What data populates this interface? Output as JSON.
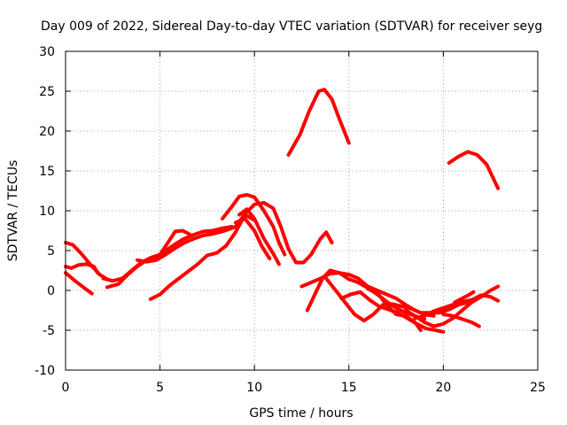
{
  "chart_data": {
    "type": "line",
    "title": "Day 009 of 2022, Sidereal Day-to-day VTEC variation (SDTVAR) for receiver seyg",
    "xlabel": "GPS time / hours",
    "ylabel": "SDTVAR / TECUs",
    "xlim": [
      0,
      25
    ],
    "ylim": [
      -10,
      30
    ],
    "xticks": [
      0,
      5,
      10,
      15,
      20,
      25
    ],
    "yticks": [
      -10,
      -5,
      0,
      5,
      10,
      15,
      20,
      25,
      30
    ],
    "grid": true,
    "color": "#ff0000",
    "series": [
      {
        "name": "arc-1",
        "x": [
          0.0,
          0.4,
          0.8,
          1.3,
          1.8,
          2.2
        ],
        "y": [
          6.0,
          5.7,
          4.7,
          3.3,
          2.0,
          1.4
        ]
      },
      {
        "name": "arc-2",
        "x": [
          0.0,
          0.3,
          0.7,
          1.1,
          1.5,
          1.7
        ],
        "y": [
          3.0,
          2.8,
          3.2,
          3.3,
          3.0,
          2.2
        ]
      },
      {
        "name": "arc-3",
        "x": [
          0.0,
          0.5,
          1.0,
          1.4
        ],
        "y": [
          2.2,
          1.2,
          0.3,
          -0.4
        ]
      },
      {
        "name": "arc-4",
        "x": [
          2.0,
          2.5,
          3.0,
          3.5,
          4.0,
          4.5,
          5.0,
          5.5,
          5.8,
          6.2,
          6.6
        ],
        "y": [
          1.5,
          1.2,
          1.5,
          2.5,
          3.5,
          4.1,
          4.5,
          6.3,
          7.4,
          7.5,
          7.0
        ]
      },
      {
        "name": "arc-5",
        "x": [
          2.2,
          2.8,
          3.3,
          3.8,
          4.3,
          4.8,
          5.3,
          5.8,
          6.2,
          6.8,
          7.3,
          7.8,
          8.3,
          8.8
        ],
        "y": [
          0.4,
          0.8,
          2.0,
          3.0,
          3.8,
          4.2,
          5.0,
          5.8,
          6.4,
          7.0,
          7.4,
          7.5,
          7.8,
          8.0
        ]
      },
      {
        "name": "arc-6",
        "x": [
          3.8,
          4.3,
          4.8,
          5.3,
          5.8,
          6.3,
          6.8,
          7.3,
          7.8,
          8.3,
          8.8,
          9.2
        ],
        "y": [
          3.8,
          3.6,
          3.8,
          4.5,
          5.3,
          6.0,
          6.5,
          6.9,
          7.1,
          7.4,
          7.8,
          8.2
        ]
      },
      {
        "name": "arc-7",
        "x": [
          4.5,
          5.0,
          5.5,
          6.0,
          6.5,
          7.0,
          7.5,
          8.0,
          8.5,
          9.0,
          9.5,
          10.0
        ],
        "y": [
          -1.1,
          -0.5,
          0.6,
          1.5,
          2.4,
          3.3,
          4.4,
          4.7,
          5.6,
          7.3,
          9.5,
          8.8
        ]
      },
      {
        "name": "arc-8",
        "x": [
          8.3,
          8.8,
          9.2,
          9.6,
          10.0,
          10.5,
          11.0,
          11.3,
          11.6
        ],
        "y": [
          9.0,
          10.5,
          11.8,
          12.0,
          11.7,
          10.0,
          8.0,
          6.0,
          4.5
        ]
      },
      {
        "name": "arc-9",
        "x": [
          9.0,
          9.5,
          10.0,
          10.5,
          11.0,
          11.4,
          11.8,
          12.2,
          12.6,
          13.0,
          13.5,
          13.8,
          14.1
        ],
        "y": [
          8.0,
          9.6,
          10.8,
          11.0,
          10.3,
          8.0,
          5.2,
          3.5,
          3.5,
          4.5,
          6.5,
          7.3,
          6.0
        ]
      },
      {
        "name": "arc-10",
        "x": [
          9.2,
          9.6,
          10.0,
          10.5,
          11.0,
          11.3
        ],
        "y": [
          9.5,
          10.2,
          9.0,
          6.5,
          4.6,
          3.3
        ]
      },
      {
        "name": "arc-11",
        "x": [
          9.0,
          9.5,
          10.0,
          10.4,
          10.8
        ],
        "y": [
          8.5,
          9.0,
          7.5,
          5.5,
          4.0
        ]
      },
      {
        "name": "arc-12",
        "x": [
          11.8,
          12.4,
          12.9,
          13.4,
          13.7,
          14.1,
          14.5,
          15.0
        ],
        "y": [
          17.0,
          19.5,
          22.5,
          25.0,
          25.2,
          24.0,
          21.5,
          18.5
        ]
      },
      {
        "name": "arc-13",
        "x": [
          12.5,
          13.0,
          13.5,
          14.0,
          14.5,
          15.0,
          15.5,
          16.0,
          16.5,
          17.0,
          17.5,
          18.0,
          18.5,
          19.0,
          19.5
        ],
        "y": [
          0.5,
          1.0,
          1.5,
          2.1,
          2.2,
          2.0,
          1.5,
          0.5,
          0.0,
          -0.5,
          -1.0,
          -1.8,
          -2.5,
          -3.0,
          -3.2
        ]
      },
      {
        "name": "arc-14",
        "x": [
          12.8,
          13.2,
          13.6,
          14.0,
          14.5,
          15.0,
          15.5,
          16.0,
          16.5,
          17.0,
          17.5,
          18.0,
          18.5,
          19.0
        ],
        "y": [
          -2.5,
          -0.5,
          1.5,
          2.5,
          2.2,
          1.4,
          1.0,
          0.3,
          -0.5,
          -1.4,
          -2.2,
          -2.8,
          -3.2,
          -3.6
        ]
      },
      {
        "name": "arc-15",
        "x": [
          13.8,
          14.3,
          14.8,
          15.3,
          15.8,
          16.3,
          16.8,
          17.3,
          17.8,
          18.3,
          18.8,
          19.3,
          19.8,
          20.3,
          20.8,
          21.3
        ],
        "y": [
          1.5,
          0.0,
          -1.5,
          -3.0,
          -3.8,
          -3.0,
          -1.8,
          -1.7,
          -2.0,
          -2.3,
          -2.8,
          -2.8,
          -2.8,
          -2.4,
          -1.8,
          -1.5
        ]
      },
      {
        "name": "arc-16",
        "x": [
          14.6,
          15.1,
          15.6,
          16.1,
          16.6,
          17.1,
          17.6,
          18.1,
          18.6,
          19.1,
          19.6,
          20.0
        ],
        "y": [
          -1.0,
          -0.5,
          -0.2,
          -1.2,
          -2.0,
          -2.4,
          -2.8,
          -3.5,
          -4.2,
          -4.8,
          -5.0,
          -5.2
        ]
      },
      {
        "name": "arc-17",
        "x": [
          16.0,
          16.5,
          17.0,
          17.5,
          18.0,
          18.5,
          18.8
        ],
        "y": [
          0.2,
          -0.3,
          -1.8,
          -3.0,
          -3.2,
          -4.0,
          -5.0
        ]
      },
      {
        "name": "arc-18",
        "x": [
          18.0,
          18.5,
          19.0,
          19.5,
          20.0,
          20.5,
          21.0,
          21.5,
          22.0,
          22.5,
          22.9
        ],
        "y": [
          -2.5,
          -3.2,
          -4.0,
          -4.5,
          -4.2,
          -3.5,
          -2.5,
          -1.5,
          -0.8,
          0.0,
          0.5
        ]
      },
      {
        "name": "arc-19",
        "x": [
          18.5,
          19.0,
          19.5,
          20.0,
          20.5,
          21.0,
          21.5,
          22.0,
          22.5,
          22.9
        ],
        "y": [
          -3.5,
          -3.2,
          -2.6,
          -2.2,
          -1.8,
          -1.4,
          -1.2,
          -0.6,
          -0.8,
          -1.3
        ]
      },
      {
        "name": "arc-20",
        "x": [
          20.0,
          20.5,
          21.0,
          21.5,
          21.9
        ],
        "y": [
          -3.0,
          -3.2,
          -3.6,
          -4.0,
          -4.5
        ]
      },
      {
        "name": "arc-21",
        "x": [
          20.6,
          21.0,
          21.4,
          21.6
        ],
        "y": [
          -1.5,
          -1.0,
          -0.5,
          -0.2
        ]
      },
      {
        "name": "arc-22",
        "x": [
          20.3,
          20.8,
          21.3,
          21.8,
          22.3,
          22.9
        ],
        "y": [
          16.0,
          16.8,
          17.4,
          17.0,
          15.8,
          12.8
        ]
      }
    ]
  }
}
